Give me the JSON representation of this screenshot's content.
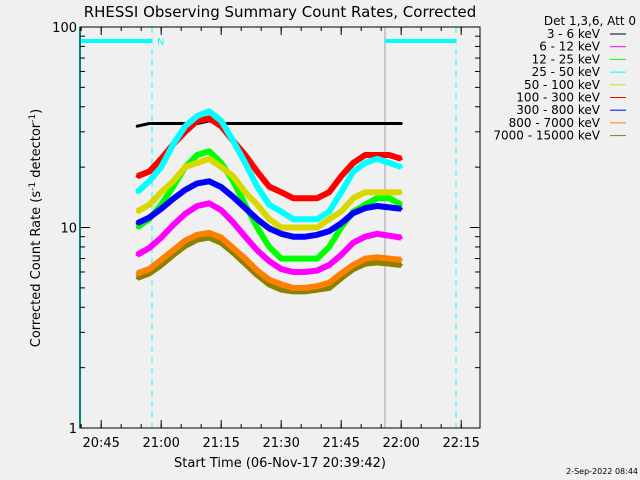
{
  "chart_data": {
    "type": "line",
    "title": "RHESSI Observing Summary Count Rates, Corrected",
    "xlabel": "Start Time (06-Nov-17 20:39:42)",
    "ylabel": "Corrected Count Rate (s",
    "ylabel_sup1": "-1",
    "ylabel_mid": " detector",
    "ylabel_sup2": "-1",
    "ylabel_end": ")",
    "yscale": "log",
    "ylim": [
      1,
      100
    ],
    "xlim_minutes": [
      0,
      100
    ],
    "x_start": "20:39:42",
    "x_ticks": [
      {
        "label": "20:45",
        "min": 5.3
      },
      {
        "label": "21:00",
        "min": 20.3
      },
      {
        "label": "21:15",
        "min": 35.3
      },
      {
        "label": "21:30",
        "min": 50.3
      },
      {
        "label": "21:45",
        "min": 65.3
      },
      {
        "label": "22:00",
        "min": 80.3
      },
      {
        "label": "22:15",
        "min": 95.3
      }
    ],
    "y_ticks": [
      {
        "label": "100",
        "v": 100
      },
      {
        "label": "10",
        "v": 10
      },
      {
        "label": "1",
        "v": 1
      }
    ],
    "legend_title": "Det 1,3,6, Att 0",
    "legend_position": "right",
    "annotation_n": "N",
    "footer": "2-Sep-2022 08:44",
    "times": [
      "20:54",
      "20:57",
      "21:00",
      "21:03",
      "21:06",
      "21:09",
      "21:12",
      "21:15",
      "21:18",
      "21:21",
      "21:24",
      "21:27",
      "21:30",
      "21:33",
      "21:36",
      "21:39",
      "21:42",
      "21:45",
      "21:48",
      "21:51",
      "21:54",
      "21:57",
      "22:00"
    ],
    "series": [
      {
        "name": "3 - 6 keV",
        "color": "#000000",
        "values": [
          32,
          33,
          33,
          33,
          33,
          33,
          34,
          33,
          33,
          33,
          33,
          33,
          33,
          33,
          33,
          33,
          33,
          33,
          33,
          33,
          33,
          33,
          33
        ]
      },
      {
        "name": "6 - 12 keV",
        "color": "#ff00ff",
        "values": [
          7.3,
          7.9,
          8.9,
          10.3,
          11.7,
          12.8,
          13.2,
          12.2,
          10.6,
          9,
          7.7,
          6.8,
          6.2,
          6,
          6,
          6.1,
          6.5,
          7.3,
          8.4,
          9,
          9.3,
          9.1,
          8.9
        ]
      },
      {
        "name": "12 - 25 keV",
        "color": "#00ff00",
        "values": [
          10,
          11,
          13,
          16,
          20,
          23,
          24,
          21,
          17,
          13,
          10,
          8,
          7,
          7,
          7,
          7,
          8,
          10,
          12,
          13,
          14,
          14,
          13
        ]
      },
      {
        "name": "25 - 50 keV",
        "color": "#00ffff",
        "values": [
          15,
          17,
          20,
          26,
          32,
          36,
          38,
          34,
          27,
          21,
          16,
          13,
          12,
          11,
          11,
          11,
          12,
          15,
          19,
          21,
          22,
          21,
          20
        ]
      },
      {
        "name": "50 - 100 keV",
        "color": "#d8d800",
        "values": [
          12,
          13,
          15,
          17,
          20,
          21,
          22,
          20,
          18,
          15,
          13,
          11,
          10,
          10,
          10,
          10,
          11,
          12,
          14,
          15,
          15,
          15,
          15
        ]
      },
      {
        "name": "100 - 300 keV",
        "color": "#ff0000",
        "values": [
          18,
          19,
          22,
          26,
          30,
          34,
          35,
          32,
          27,
          23,
          19,
          16,
          15,
          14,
          14,
          14,
          15,
          18,
          21,
          23,
          23,
          23,
          22
        ]
      },
      {
        "name": "300 - 800 keV",
        "color": "#0000ff",
        "values": [
          10.5,
          11.2,
          12.4,
          13.9,
          15.4,
          16.6,
          17,
          15.9,
          14.2,
          12.5,
          11,
          9.9,
          9.3,
          9,
          9,
          9.2,
          9.6,
          10.5,
          11.8,
          12.5,
          12.8,
          12.6,
          12.4
        ]
      },
      {
        "name": "800 - 7000 keV",
        "color": "#ff8000",
        "values": [
          5.9,
          6.2,
          6.9,
          7.7,
          8.6,
          9.2,
          9.4,
          8.9,
          7.9,
          7,
          6.1,
          5.5,
          5.2,
          5,
          5,
          5.1,
          5.3,
          5.9,
          6.5,
          7,
          7.1,
          7,
          6.9
        ]
      },
      {
        "name": "7000 - 15000 keV",
        "color": "#8b8000",
        "values": [
          5.6,
          5.9,
          6.5,
          7.3,
          8.1,
          8.7,
          8.9,
          8.4,
          7.5,
          6.6,
          5.8,
          5.2,
          4.9,
          4.8,
          4.8,
          4.9,
          5,
          5.6,
          6.2,
          6.6,
          6.7,
          6.6,
          6.5
        ]
      }
    ]
  }
}
